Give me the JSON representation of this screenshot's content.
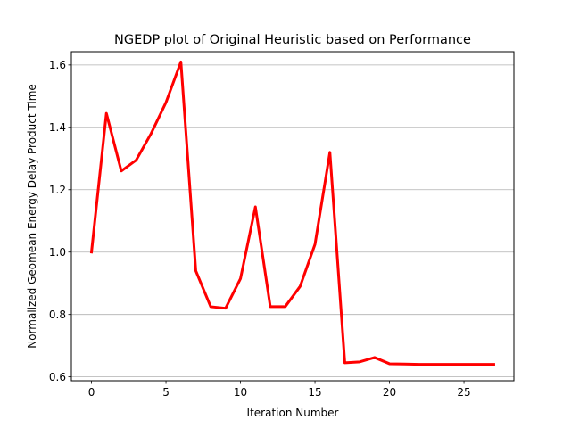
{
  "chart_data": {
    "type": "line",
    "title": "NGEDP plot of Original Heuristic based on Performance",
    "xlabel": "Iteration Number",
    "ylabel": "Normalized Geomean Energy Delay Product Time",
    "xlim": [
      -1.35,
      28.35
    ],
    "ylim": [
      0.5875,
      1.6425
    ],
    "xticks": [
      0,
      5,
      10,
      15,
      20,
      25
    ],
    "yticks": [
      0.6,
      0.8,
      1.0,
      1.2,
      1.4,
      1.6
    ],
    "ytick_labels": [
      "0.6",
      "0.8",
      "1.0",
      "1.2",
      "1.4",
      "1.6"
    ],
    "grid": "y-major",
    "series": [
      {
        "color": "#ff0000",
        "x": [
          0,
          1,
          2,
          3,
          4,
          5,
          6,
          7,
          8,
          9,
          10,
          11,
          12,
          13,
          14,
          15,
          16,
          17,
          18,
          19,
          20,
          21,
          22,
          23,
          24,
          25,
          26,
          27
        ],
        "y": [
          1.0,
          1.445,
          1.26,
          1.295,
          1.38,
          1.48,
          1.61,
          0.94,
          0.825,
          0.82,
          0.915,
          1.145,
          0.825,
          0.825,
          0.89,
          1.025,
          1.32,
          0.645,
          0.648,
          0.662,
          0.642,
          0.641,
          0.64,
          0.64,
          0.64,
          0.64,
          0.64,
          0.64
        ]
      }
    ]
  }
}
